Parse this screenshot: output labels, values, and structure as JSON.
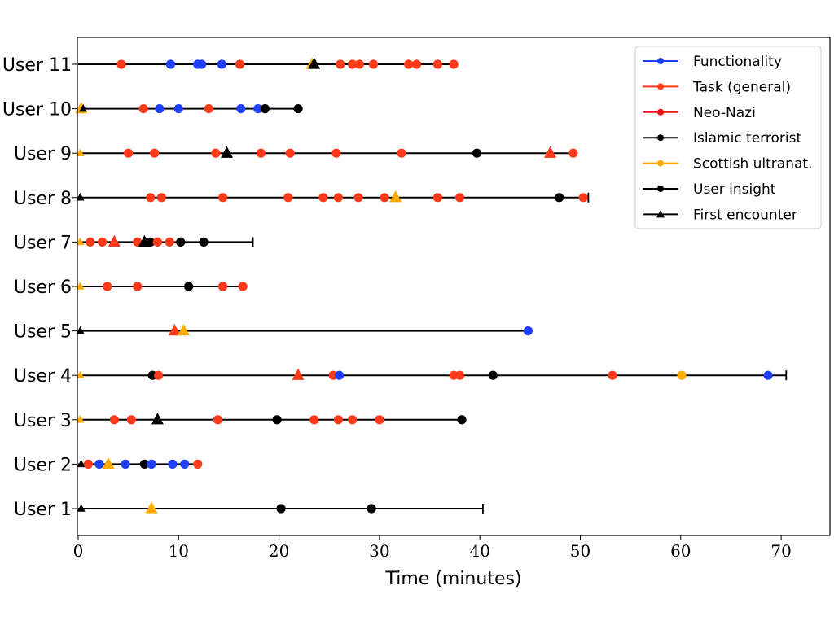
{
  "chart_data": {
    "type": "scatter",
    "xlabel": "Time (minutes)",
    "ylabel": "",
    "xlim": [
      0,
      75
    ],
    "x_ticks": [
      0,
      10,
      20,
      30,
      40,
      50,
      60,
      70
    ],
    "grid": false,
    "legend_position": "top-right",
    "legend": [
      {
        "label": "Functionality",
        "color": "#1f3fff",
        "marker": "circle"
      },
      {
        "label": "Task (general)",
        "color": "#ff3a1a",
        "marker": "circle"
      },
      {
        "label": "Neo-Nazi",
        "color": "#ee1111",
        "marker": "circle"
      },
      {
        "label": "Islamic terrorist",
        "color": "#000000",
        "marker": "circle"
      },
      {
        "label": "Scottish ultranat.",
        "color": "#ffaa00",
        "marker": "circle"
      },
      {
        "label": "User insight",
        "color": "#000000",
        "marker": "circle"
      },
      {
        "label": "First encounter",
        "color": "#000000",
        "marker": "triangle"
      }
    ],
    "users": [
      {
        "label": "User 1",
        "end": 40.3,
        "end_cap": true,
        "points": [
          {
            "x": 0.3,
            "c": "black",
            "m": "tri_small"
          },
          {
            "x": 7.3,
            "c": "orange",
            "m": "tri"
          },
          {
            "x": 20.2,
            "c": "black",
            "m": "circle"
          },
          {
            "x": 29.2,
            "c": "black",
            "m": "circle"
          }
        ]
      },
      {
        "label": "User 2",
        "end": 11.9,
        "end_cap": false,
        "points": [
          {
            "x": 0.3,
            "c": "black",
            "m": "tri_small"
          },
          {
            "x": 1.0,
            "c": "red",
            "m": "circle"
          },
          {
            "x": 2.1,
            "c": "blue",
            "m": "circle"
          },
          {
            "x": 3.0,
            "c": "orange",
            "m": "tri"
          },
          {
            "x": 4.7,
            "c": "blue",
            "m": "circle"
          },
          {
            "x": 6.6,
            "c": "black",
            "m": "circle"
          },
          {
            "x": 7.3,
            "c": "blue",
            "m": "circle"
          },
          {
            "x": 9.4,
            "c": "blue",
            "m": "circle"
          },
          {
            "x": 10.6,
            "c": "blue",
            "m": "circle"
          },
          {
            "x": 11.9,
            "c": "red",
            "m": "circle"
          }
        ]
      },
      {
        "label": "User 3",
        "end": 38.2,
        "end_cap": false,
        "points": [
          {
            "x": 0.2,
            "c": "orange",
            "m": "tri_small"
          },
          {
            "x": 3.6,
            "c": "red",
            "m": "circle"
          },
          {
            "x": 5.3,
            "c": "red",
            "m": "circle"
          },
          {
            "x": 7.9,
            "c": "black",
            "m": "tri"
          },
          {
            "x": 13.9,
            "c": "red",
            "m": "circle"
          },
          {
            "x": 19.8,
            "c": "black",
            "m": "circle"
          },
          {
            "x": 23.5,
            "c": "red",
            "m": "circle"
          },
          {
            "x": 25.9,
            "c": "red",
            "m": "circle"
          },
          {
            "x": 27.3,
            "c": "red",
            "m": "circle"
          },
          {
            "x": 30.0,
            "c": "red",
            "m": "circle"
          },
          {
            "x": 38.2,
            "c": "black",
            "m": "circle"
          }
        ]
      },
      {
        "label": "User 4",
        "end": 70.5,
        "end_cap": true,
        "points": [
          {
            "x": 0.2,
            "c": "orange",
            "m": "tri_small"
          },
          {
            "x": 7.4,
            "c": "black",
            "m": "circle"
          },
          {
            "x": 8.0,
            "c": "red",
            "m": "circle"
          },
          {
            "x": 21.9,
            "c": "red",
            "m": "tri"
          },
          {
            "x": 25.4,
            "c": "red",
            "m": "circle"
          },
          {
            "x": 26.0,
            "c": "blue",
            "m": "circle"
          },
          {
            "x": 37.4,
            "c": "red",
            "m": "circle"
          },
          {
            "x": 38.0,
            "c": "red",
            "m": "circle"
          },
          {
            "x": 41.3,
            "c": "black",
            "m": "circle"
          },
          {
            "x": 53.2,
            "c": "red",
            "m": "circle"
          },
          {
            "x": 60.1,
            "c": "orange",
            "m": "circle"
          },
          {
            "x": 68.7,
            "c": "blue",
            "m": "circle"
          }
        ]
      },
      {
        "label": "User 5",
        "end": 44.8,
        "end_cap": false,
        "points": [
          {
            "x": 0.2,
            "c": "black",
            "m": "tri_small"
          },
          {
            "x": 9.6,
            "c": "red",
            "m": "tri"
          },
          {
            "x": 10.5,
            "c": "orange",
            "m": "tri"
          },
          {
            "x": 44.8,
            "c": "blue",
            "m": "circle"
          }
        ]
      },
      {
        "label": "User 6",
        "end": 16.4,
        "end_cap": false,
        "points": [
          {
            "x": 0.2,
            "c": "orange",
            "m": "tri_small"
          },
          {
            "x": 2.9,
            "c": "red",
            "m": "circle"
          },
          {
            "x": 5.9,
            "c": "red",
            "m": "circle"
          },
          {
            "x": 11.0,
            "c": "black",
            "m": "circle"
          },
          {
            "x": 14.4,
            "c": "red",
            "m": "circle"
          },
          {
            "x": 16.4,
            "c": "red",
            "m": "circle"
          }
        ]
      },
      {
        "label": "User 7",
        "end": 17.4,
        "end_cap": true,
        "points": [
          {
            "x": 0.2,
            "c": "orange",
            "m": "tri_small"
          },
          {
            "x": 1.2,
            "c": "red",
            "m": "circle"
          },
          {
            "x": 2.4,
            "c": "red",
            "m": "circle"
          },
          {
            "x": 3.6,
            "c": "red",
            "m": "tri"
          },
          {
            "x": 5.9,
            "c": "red",
            "m": "circle"
          },
          {
            "x": 6.6,
            "c": "black",
            "m": "tri"
          },
          {
            "x": 7.2,
            "c": "black",
            "m": "circle"
          },
          {
            "x": 7.9,
            "c": "red",
            "m": "circle"
          },
          {
            "x": 9.1,
            "c": "red",
            "m": "circle"
          },
          {
            "x": 10.2,
            "c": "black",
            "m": "circle"
          },
          {
            "x": 12.5,
            "c": "black",
            "m": "circle"
          }
        ]
      },
      {
        "label": "User 8",
        "end": 50.8,
        "end_cap": true,
        "points": [
          {
            "x": 0.2,
            "c": "black",
            "m": "tri_small"
          },
          {
            "x": 7.2,
            "c": "red",
            "m": "circle"
          },
          {
            "x": 8.3,
            "c": "red",
            "m": "circle"
          },
          {
            "x": 14.4,
            "c": "red",
            "m": "circle"
          },
          {
            "x": 20.9,
            "c": "red",
            "m": "circle"
          },
          {
            "x": 24.4,
            "c": "red",
            "m": "circle"
          },
          {
            "x": 25.9,
            "c": "red",
            "m": "circle"
          },
          {
            "x": 27.9,
            "c": "red",
            "m": "circle"
          },
          {
            "x": 30.5,
            "c": "red",
            "m": "circle"
          },
          {
            "x": 31.6,
            "c": "orange",
            "m": "tri"
          },
          {
            "x": 35.8,
            "c": "red",
            "m": "circle"
          },
          {
            "x": 38.0,
            "c": "red",
            "m": "circle"
          },
          {
            "x": 47.9,
            "c": "black",
            "m": "circle"
          },
          {
            "x": 50.3,
            "c": "red",
            "m": "circle"
          }
        ]
      },
      {
        "label": "User 9",
        "end": 49.3,
        "end_cap": false,
        "points": [
          {
            "x": 0.2,
            "c": "orange",
            "m": "tri_small"
          },
          {
            "x": 5.0,
            "c": "red",
            "m": "circle"
          },
          {
            "x": 7.6,
            "c": "red",
            "m": "circle"
          },
          {
            "x": 13.7,
            "c": "red",
            "m": "circle"
          },
          {
            "x": 14.8,
            "c": "black",
            "m": "tri"
          },
          {
            "x": 18.2,
            "c": "red",
            "m": "circle"
          },
          {
            "x": 21.1,
            "c": "red",
            "m": "circle"
          },
          {
            "x": 25.7,
            "c": "red",
            "m": "circle"
          },
          {
            "x": 32.2,
            "c": "red",
            "m": "circle"
          },
          {
            "x": 39.7,
            "c": "black",
            "m": "circle"
          },
          {
            "x": 47.0,
            "c": "red",
            "m": "tri"
          },
          {
            "x": 49.3,
            "c": "red",
            "m": "circle"
          }
        ]
      },
      {
        "label": "User 10",
        "end": 21.9,
        "end_cap": false,
        "points": [
          {
            "x": 0.3,
            "c": "orange",
            "m": "tri"
          },
          {
            "x": 0.5,
            "c": "black",
            "m": "tri_small"
          },
          {
            "x": 6.5,
            "c": "red",
            "m": "circle"
          },
          {
            "x": 8.1,
            "c": "blue",
            "m": "circle"
          },
          {
            "x": 10.0,
            "c": "blue",
            "m": "circle"
          },
          {
            "x": 13.0,
            "c": "red",
            "m": "circle"
          },
          {
            "x": 16.2,
            "c": "blue",
            "m": "circle"
          },
          {
            "x": 17.9,
            "c": "blue",
            "m": "circle"
          },
          {
            "x": 18.6,
            "c": "black",
            "m": "circle"
          },
          {
            "x": 21.9,
            "c": "black",
            "m": "circle"
          }
        ]
      },
      {
        "label": "User 11",
        "end": 37.4,
        "end_cap": false,
        "points": [
          {
            "x": 4.3,
            "c": "red",
            "m": "circle"
          },
          {
            "x": 9.2,
            "c": "blue",
            "m": "circle"
          },
          {
            "x": 11.9,
            "c": "blue",
            "m": "circle"
          },
          {
            "x": 12.3,
            "c": "blue",
            "m": "circle"
          },
          {
            "x": 14.3,
            "c": "blue",
            "m": "circle"
          },
          {
            "x": 16.1,
            "c": "red",
            "m": "circle"
          },
          {
            "x": 23.3,
            "c": "orange",
            "m": "tri"
          },
          {
            "x": 23.5,
            "c": "black",
            "m": "tri"
          },
          {
            "x": 26.1,
            "c": "red",
            "m": "circle"
          },
          {
            "x": 27.3,
            "c": "red",
            "m": "circle"
          },
          {
            "x": 28.0,
            "c": "red",
            "m": "circle"
          },
          {
            "x": 29.4,
            "c": "red",
            "m": "circle"
          },
          {
            "x": 32.9,
            "c": "red",
            "m": "circle"
          },
          {
            "x": 33.7,
            "c": "red",
            "m": "circle"
          },
          {
            "x": 35.8,
            "c": "red",
            "m": "circle"
          },
          {
            "x": 37.4,
            "c": "red",
            "m": "circle"
          }
        ]
      }
    ],
    "palette": {
      "red": "#ff3a1a",
      "blue": "#1f3fff",
      "orange": "#ffaa00",
      "black": "#000000"
    }
  }
}
